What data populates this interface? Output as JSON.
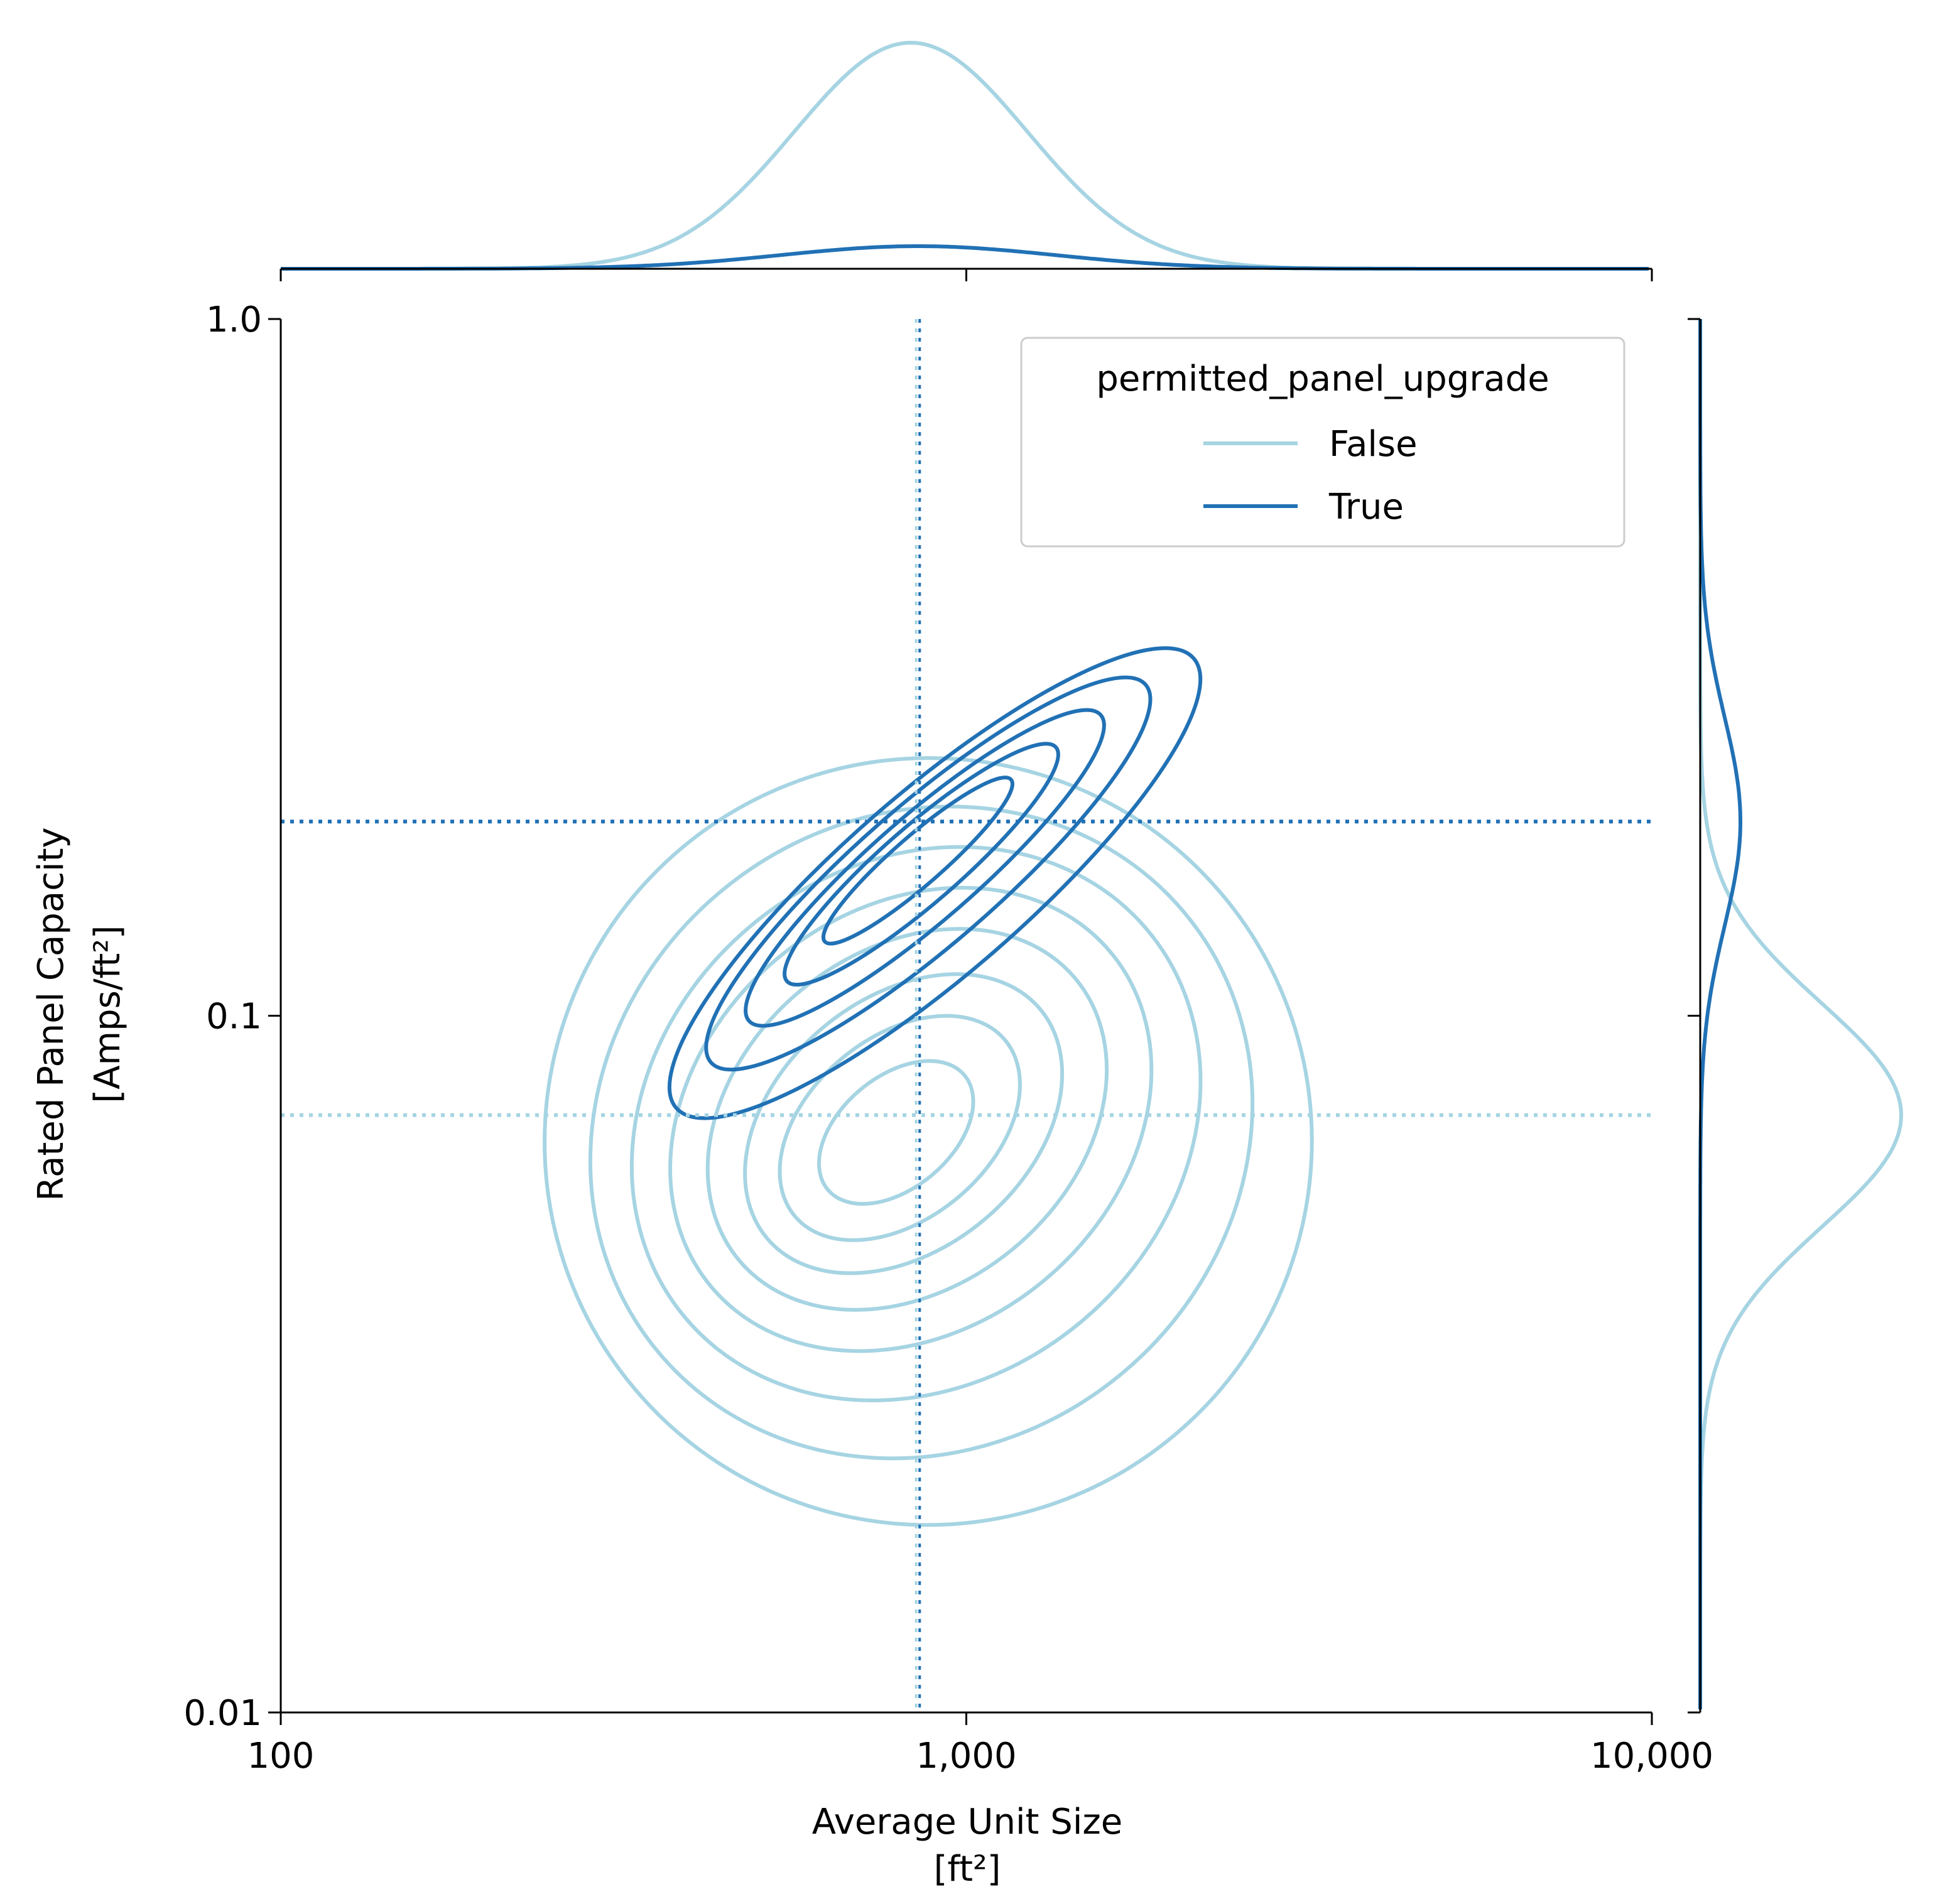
{
  "chart_data": {
    "type": "kde-joint",
    "xlabel": "Average Unit Size",
    "xunit": "[ft²]",
    "ylabel": "Rated Panel Capacity",
    "yunit": "[Amps/ft²]",
    "xscale": "log",
    "yscale": "log",
    "xlim": [
      100,
      10000
    ],
    "ylim": [
      0.01,
      1.0
    ],
    "x_ticks": [
      100,
      1000,
      10000
    ],
    "x_tick_labels": [
      "100",
      "1,000",
      "10,000"
    ],
    "y_ticks": [
      0.01,
      0.1,
      1.0
    ],
    "y_tick_labels": [
      "0.01",
      "0.1",
      "1.0"
    ],
    "legend": {
      "title": "permitted_panel_upgrade",
      "placement": "upper right",
      "entries": [
        "False",
        "True"
      ]
    },
    "colors": {
      "False": "#a6d4e3",
      "True": "#2171b5"
    },
    "reference_lines": [
      {
        "series": "False",
        "orientation": "horizontal",
        "y": 0.072
      },
      {
        "series": "True",
        "orientation": "horizontal",
        "y": 0.19
      },
      {
        "series": "False",
        "orientation": "vertical",
        "x": 845
      },
      {
        "series": "True",
        "orientation": "vertical",
        "x": 855
      }
    ],
    "series": [
      {
        "name": "False",
        "contours": [
          {
            "cx": 880,
            "cy": 0.066,
            "rx": 0.56,
            "ry": 0.55,
            "angle": -40
          },
          {
            "cx": 860,
            "cy": 0.068,
            "rx": 0.5,
            "ry": 0.45,
            "angle": -40
          },
          {
            "cx": 845,
            "cy": 0.07,
            "rx": 0.44,
            "ry": 0.37,
            "angle": -40
          },
          {
            "cx": 830,
            "cy": 0.071,
            "rx": 0.38,
            "ry": 0.3,
            "angle": -40
          },
          {
            "cx": 820,
            "cy": 0.071,
            "rx": 0.32,
            "ry": 0.24,
            "angle": -40
          },
          {
            "cx": 810,
            "cy": 0.07,
            "rx": 0.26,
            "ry": 0.18,
            "angle": -40
          },
          {
            "cx": 800,
            "cy": 0.069,
            "rx": 0.2,
            "ry": 0.13,
            "angle": -40
          },
          {
            "cx": 790,
            "cy": 0.068,
            "rx": 0.13,
            "ry": 0.08,
            "angle": -40
          }
        ],
        "x_density": {
          "center": 830,
          "sd": 0.17,
          "peak": 1.0
        },
        "y_density": {
          "center": 0.072,
          "sd": 0.16,
          "peak": 1.0
        }
      },
      {
        "name": "True",
        "contours": [
          {
            "cx": 900,
            "cy": 0.155,
            "rx": 0.5,
            "ry": 0.13,
            "angle": -41
          },
          {
            "cx": 880,
            "cy": 0.16,
            "rx": 0.42,
            "ry": 0.1,
            "angle": -41
          },
          {
            "cx": 870,
            "cy": 0.163,
            "rx": 0.34,
            "ry": 0.075,
            "angle": -41
          },
          {
            "cx": 860,
            "cy": 0.165,
            "rx": 0.26,
            "ry": 0.055,
            "angle": -41
          },
          {
            "cx": 850,
            "cy": 0.167,
            "rx": 0.18,
            "ry": 0.035,
            "angle": -41
          }
        ],
        "x_density": {
          "center": 850,
          "sd": 0.2,
          "peak": 0.1
        },
        "y_density": {
          "center": 0.19,
          "sd": 0.15,
          "peak": 0.2
        }
      }
    ]
  }
}
